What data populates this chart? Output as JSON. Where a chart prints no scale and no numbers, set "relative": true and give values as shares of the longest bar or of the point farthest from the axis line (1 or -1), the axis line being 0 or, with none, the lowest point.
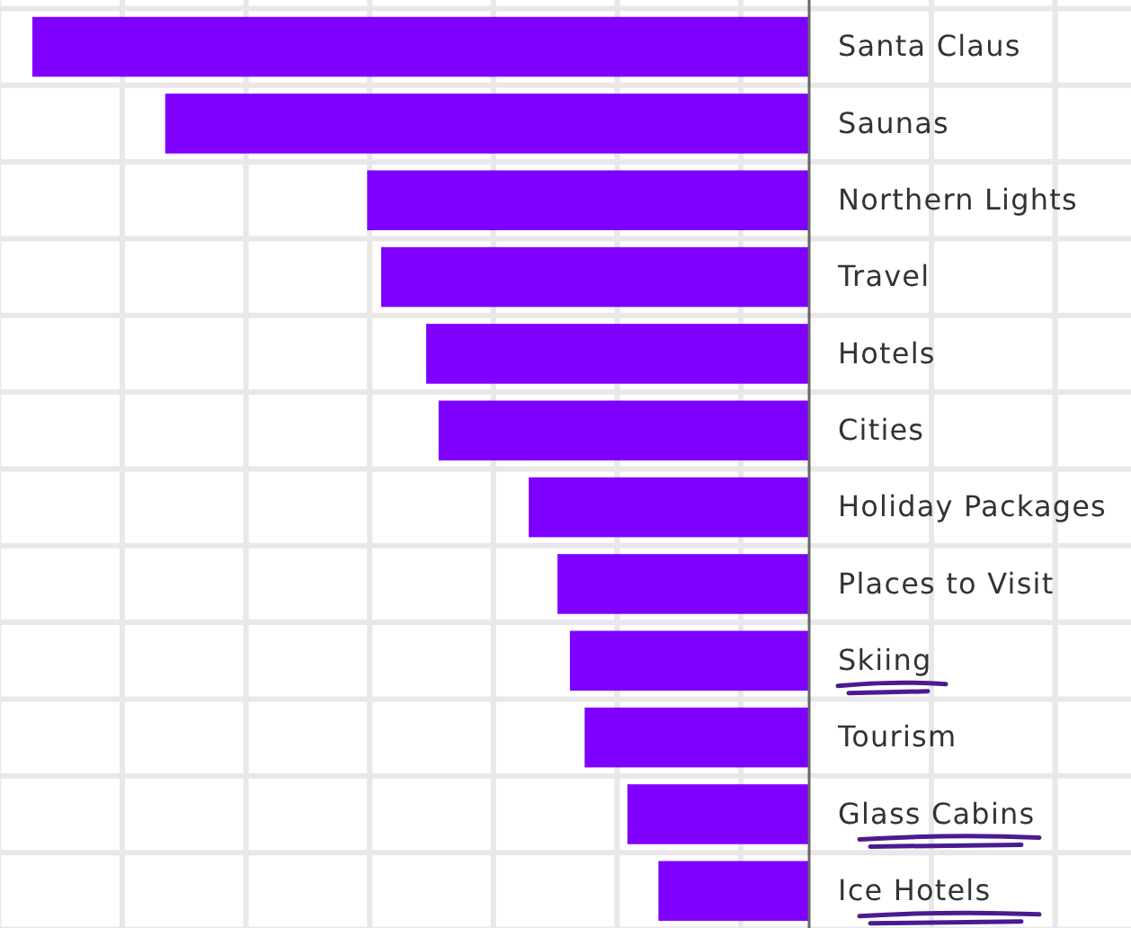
{
  "chart_data": {
    "type": "bar",
    "orientation": "horizontal",
    "relative": true,
    "grid": true,
    "categories": [
      "Santa Claus",
      "Saunas",
      "Northern Lights",
      "Travel",
      "Hotels",
      "Cities",
      "Holiday Packages",
      "Places to Visit",
      "Skiing",
      "Tourism",
      "Glass Cabins",
      "Ice Hotels"
    ],
    "values": [
      -1,
      -0.829,
      -0.569,
      -0.551,
      -0.493,
      -0.477,
      -0.361,
      -0.324,
      -0.308,
      -0.289,
      -0.234,
      -0.194
    ],
    "color": "#7f00ff"
  }
}
